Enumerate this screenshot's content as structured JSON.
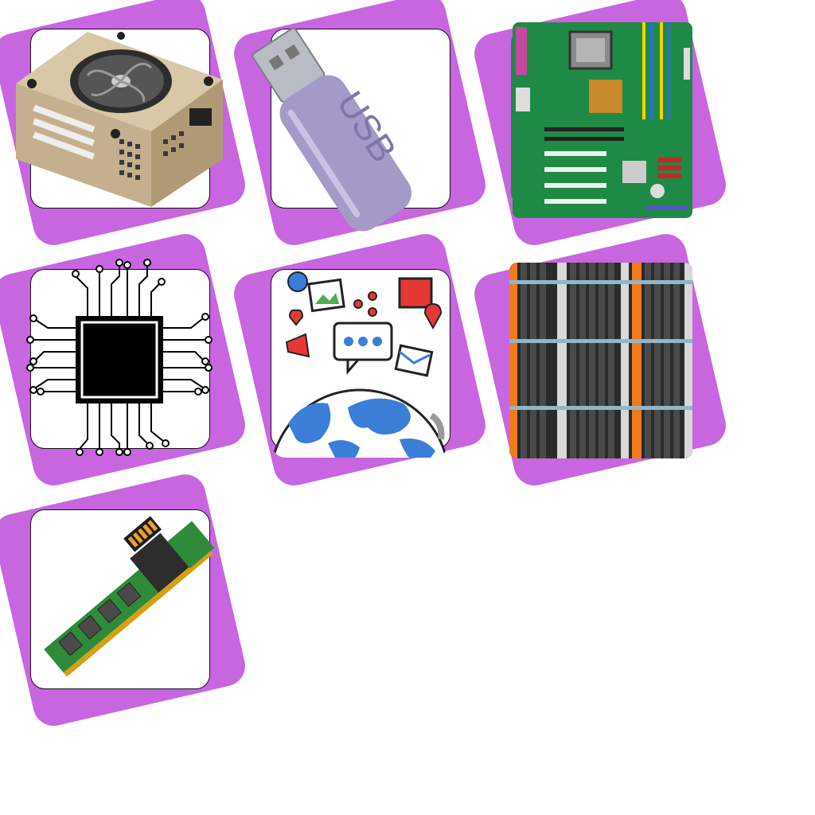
{
  "colors": {
    "background": "#ffffff",
    "tile_accent": "#c866e0",
    "card": "#ffffff"
  },
  "tiles": [
    {
      "icon": "power-supply-icon"
    },
    {
      "icon": "usb-drive-icon",
      "text": "USB"
    },
    {
      "icon": "motherboard-icon"
    },
    {
      "icon": "cpu-chip-icon"
    },
    {
      "icon": "globe-social-media-icon"
    },
    {
      "icon": "network-cables-icon"
    },
    {
      "icon": "ram-module-icon"
    }
  ]
}
